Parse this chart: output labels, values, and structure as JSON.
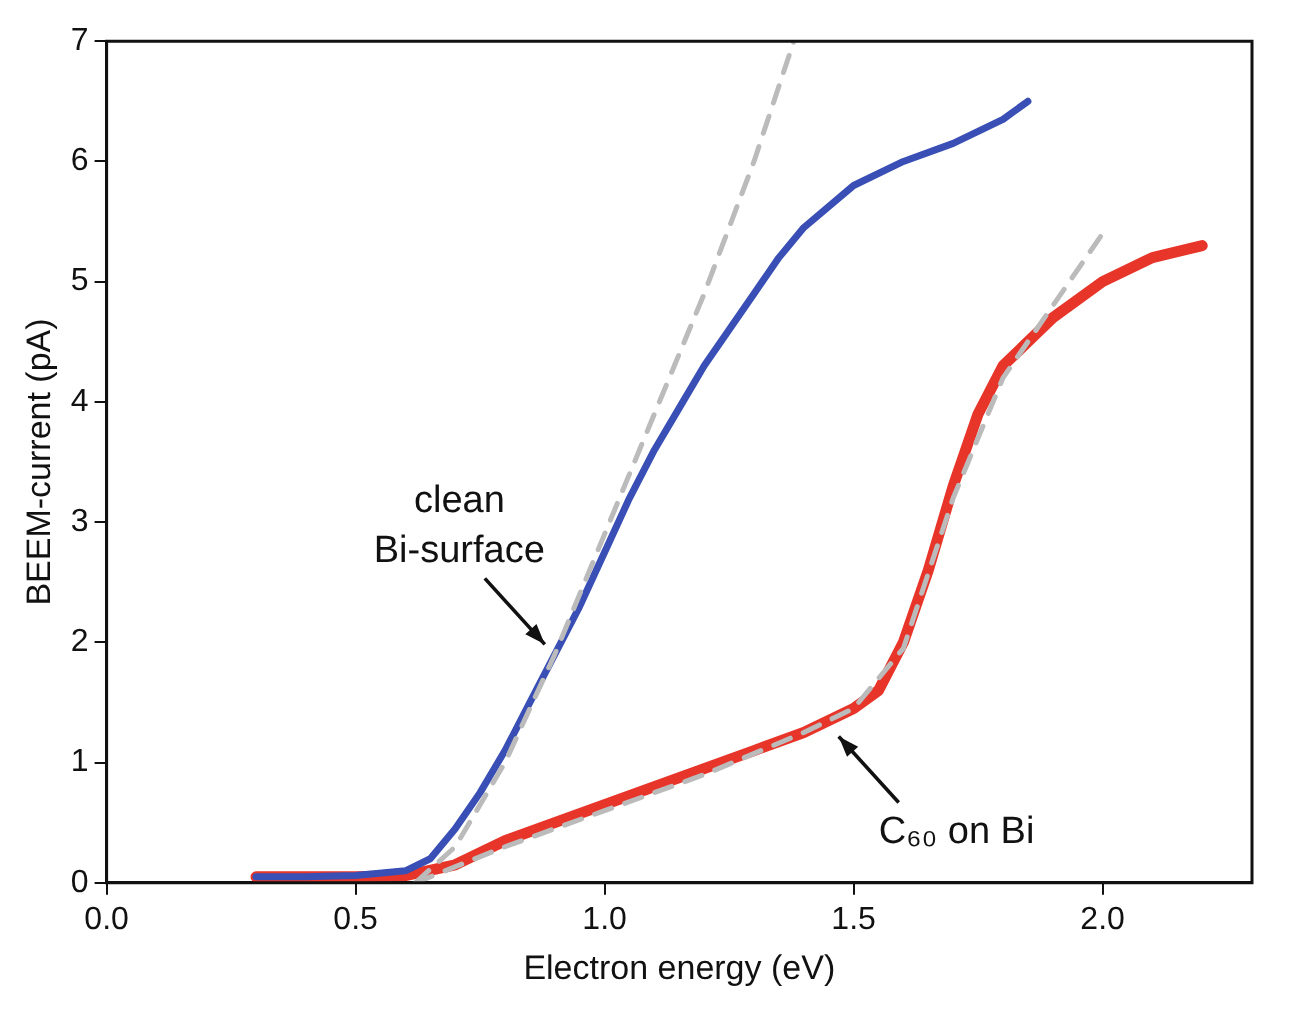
{
  "chart_data": {
    "type": "line",
    "xlabel": "Electron energy (eV)",
    "ylabel": "BEEM-current (pA)",
    "xlim": [
      0,
      2.3
    ],
    "ylim": [
      0,
      7
    ],
    "xticks": [
      {
        "value": 0,
        "label": "0.0"
      },
      {
        "value": 0.5,
        "label": "0.5"
      },
      {
        "value": 1,
        "label": "1.0"
      },
      {
        "value": 1.5,
        "label": "1.5"
      },
      {
        "value": 2,
        "label": "2.0"
      }
    ],
    "yticks": [
      0,
      1,
      2,
      3,
      4,
      5,
      6,
      7
    ],
    "grid": false,
    "legend": false,
    "marker": "none",
    "series": [
      {
        "color": "#3a4fb5",
        "line_style": "solid",
        "x": [
          0.3,
          0.4,
          0.5,
          0.6,
          0.65,
          0.7,
          0.75,
          0.8,
          0.85,
          0.9,
          0.95,
          1.0,
          1.05,
          1.1,
          1.15,
          1.2,
          1.25,
          1.3,
          1.35,
          1.4,
          1.5,
          1.6,
          1.7,
          1.8,
          1.85
        ],
        "values": [
          0.05,
          0.05,
          0.06,
          0.1,
          0.2,
          0.45,
          0.75,
          1.1,
          1.5,
          1.9,
          2.3,
          2.75,
          3.2,
          3.6,
          3.95,
          4.3,
          4.6,
          4.9,
          5.2,
          5.45,
          5.8,
          6.0,
          6.15,
          6.35,
          6.5
        ]
      },
      {
        "color": "#e8352a",
        "line_style": "solid",
        "x": [
          0.3,
          0.4,
          0.5,
          0.6,
          0.7,
          0.8,
          0.9,
          1.0,
          1.1,
          1.2,
          1.3,
          1.4,
          1.5,
          1.55,
          1.6,
          1.65,
          1.7,
          1.75,
          1.8,
          1.9,
          2.0,
          2.1,
          2.2
        ],
        "values": [
          0.05,
          0.05,
          0.05,
          0.06,
          0.15,
          0.35,
          0.5,
          0.65,
          0.8,
          0.95,
          1.1,
          1.25,
          1.45,
          1.6,
          2.0,
          2.6,
          3.3,
          3.9,
          4.3,
          4.7,
          5.0,
          5.2,
          5.3
        ]
      },
      {
        "color": "#bbbbbb",
        "line_style": "dashed",
        "x": [
          0.62,
          0.7,
          0.8,
          0.9,
          1.0,
          1.1,
          1.2,
          1.3,
          1.38
        ],
        "values": [
          0,
          0.3,
          1.0,
          1.9,
          2.9,
          3.9,
          4.9,
          6.0,
          7.0
        ]
      },
      {
        "color": "#bbbbbb",
        "line_style": "dashed",
        "x": [
          0.62,
          0.8,
          1.0,
          1.2,
          1.4,
          1.5,
          1.6,
          1.7,
          1.8,
          1.9,
          2.0
        ],
        "values": [
          0,
          0.3,
          0.6,
          0.9,
          1.25,
          1.45,
          1.95,
          3.2,
          4.2,
          4.8,
          5.4
        ]
      }
    ],
    "annotations": [
      {
        "text": "clean\nBi-surface",
        "x": 0.9,
        "y": 1.9
      },
      {
        "text": "C₆₀ on Bi",
        "x": 1.45,
        "y": 1.3
      }
    ]
  }
}
